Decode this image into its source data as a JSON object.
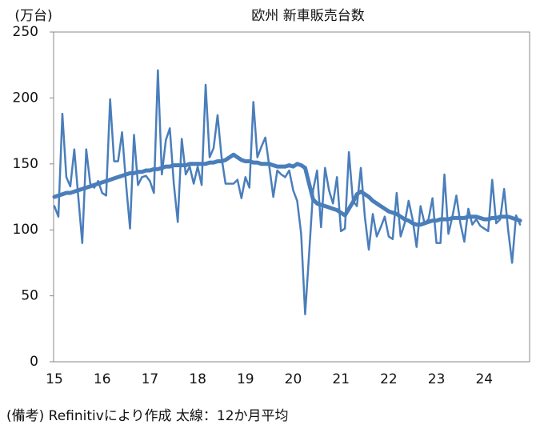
{
  "chart_data": {
    "type": "line",
    "title": "欧州 新車販売台数",
    "y_unit": "(万台)",
    "note": "(備考) Refinitivにより作成 太線：12か月平均",
    "categories": [
      "15",
      null,
      null,
      null,
      null,
      null,
      null,
      null,
      null,
      null,
      null,
      null,
      "16",
      null,
      null,
      null,
      null,
      null,
      null,
      null,
      null,
      null,
      null,
      null,
      "17",
      null,
      null,
      null,
      null,
      null,
      null,
      null,
      null,
      null,
      null,
      null,
      "18",
      null,
      null,
      null,
      null,
      null,
      null,
      null,
      null,
      null,
      null,
      null,
      "19",
      null,
      null,
      null,
      null,
      null,
      null,
      null,
      null,
      null,
      null,
      null,
      "20",
      null,
      null,
      null,
      null,
      null,
      null,
      null,
      null,
      null,
      null,
      null,
      "21",
      null,
      null,
      null,
      null,
      null,
      null,
      null,
      null,
      null,
      null,
      null,
      "22",
      null,
      null,
      null,
      null,
      null,
      null,
      null,
      null,
      null,
      null,
      null,
      "23",
      null,
      null,
      null,
      null,
      null,
      null,
      null,
      null,
      null,
      null,
      null,
      "24",
      null,
      null,
      null,
      null,
      null,
      null,
      null,
      null,
      null
    ],
    "series": [
      {
        "color": "#4a7ebb",
        "width": 2.5,
        "values": [
          118,
          110,
          188,
          140,
          133,
          161,
          125,
          90,
          161,
          135,
          132,
          137,
          128,
          126,
          199,
          152,
          152,
          174,
          135,
          101,
          172,
          134,
          140,
          141,
          137,
          128,
          221,
          142,
          168,
          177,
          135,
          106,
          169,
          142,
          148,
          135,
          148,
          134,
          210,
          155,
          162,
          187,
          155,
          135,
          135,
          135,
          138,
          124,
          140,
          132,
          197,
          155,
          163,
          170,
          148,
          125,
          145,
          142,
          140,
          145,
          130,
          122,
          97,
          36,
          82,
          130,
          145,
          102,
          147,
          130,
          120,
          140,
          99,
          101,
          159,
          122,
          118,
          147,
          110,
          85,
          112,
          95,
          102,
          110,
          95,
          93,
          128,
          95,
          105,
          122,
          108,
          87,
          118,
          105,
          108,
          124,
          90,
          90,
          142,
          97,
          110,
          126,
          105,
          91,
          116,
          104,
          108,
          103,
          101,
          99,
          138,
          105,
          108,
          131,
          100,
          75,
          111,
          104
        ]
      },
      {
        "color": "#4a7ebb",
        "width": 5,
        "values": [
          125,
          126,
          127,
          128,
          128,
          129,
          130,
          131,
          132,
          133,
          134,
          135,
          136,
          137,
          138,
          139,
          140,
          141,
          142,
          143,
          143,
          144,
          144,
          145,
          145,
          146,
          146,
          147,
          148,
          148,
          149,
          149,
          149,
          149,
          150,
          150,
          150,
          150,
          150,
          151,
          151,
          152,
          152,
          153,
          155,
          157,
          155,
          153,
          152,
          152,
          151,
          151,
          150,
          150,
          150,
          149,
          148,
          148,
          148,
          149,
          148,
          150,
          149,
          147,
          135,
          123,
          120,
          119,
          118,
          117,
          116,
          115,
          113,
          111,
          116,
          121,
          127,
          129,
          127,
          125,
          122,
          120,
          118,
          116,
          114,
          113,
          112,
          110,
          108,
          107,
          105,
          104,
          104,
          105,
          106,
          107,
          107,
          108,
          108,
          108,
          109,
          109,
          109,
          109,
          110,
          110,
          110,
          109,
          108,
          108,
          109,
          109,
          110,
          110,
          110,
          109,
          108,
          107
        ]
      }
    ],
    "ylim": [
      0,
      250
    ],
    "yticks": [
      0,
      50,
      100,
      150,
      200,
      250
    ],
    "grid": false
  }
}
